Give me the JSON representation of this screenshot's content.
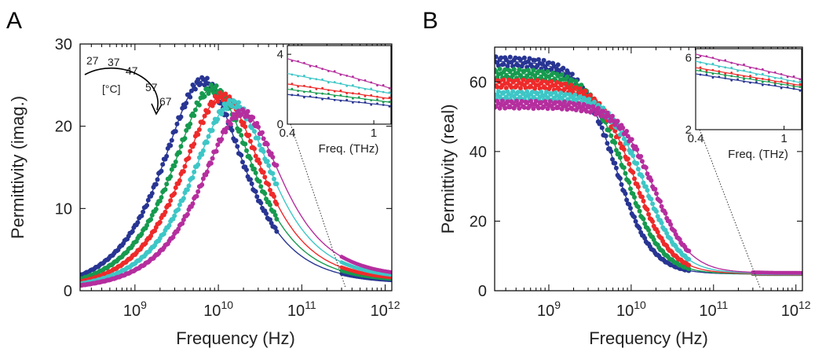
{
  "temperatures": {
    "unit_label": "[°C]",
    "values": [
      "27",
      "37",
      "47",
      "57",
      "67"
    ]
  },
  "colors": {
    "27": "#283593",
    "37": "#169a4f",
    "47": "#ee2a2a",
    "57": "#3ec6c6",
    "67": "#b52e9e"
  },
  "chart_data": [
    {
      "panel_label": "A",
      "type": "scatter",
      "xlabel": "Frequency (Hz)",
      "ylabel": "Permittivity (imag.)",
      "xscale": "log",
      "xlim": [
        220000000.0,
        1200000000000.0
      ],
      "ylim": [
        0,
        30
      ],
      "yticks": [
        0,
        10,
        20,
        30
      ],
      "xticks": [
        {
          "value": 1000000000.0,
          "base": "10",
          "exp": "9"
        },
        {
          "value": 10000000000.0,
          "base": "10",
          "exp": "10"
        },
        {
          "value": 100000000000.0,
          "base": "10",
          "exp": "11"
        },
        {
          "value": 1000000000000.0,
          "base": "10",
          "exp": "12"
        }
      ],
      "grid": false,
      "series": [
        {
          "name": "27",
          "peak_freq_hz": 6500000000.0,
          "peak_value": 24.8,
          "high_freq_plateau": 1.0
        },
        {
          "name": "37",
          "peak_freq_hz": 8500000000.0,
          "peak_value": 23.8,
          "high_freq_plateau": 1.1
        },
        {
          "name": "47",
          "peak_freq_hz": 11000000000.0,
          "peak_value": 22.8,
          "high_freq_plateau": 1.2
        },
        {
          "name": "57",
          "peak_freq_hz": 14500000000.0,
          "peak_value": 21.8,
          "high_freq_plateau": 1.4
        },
        {
          "name": "67",
          "peak_freq_hz": 19000000000.0,
          "peak_value": 20.5,
          "high_freq_plateau": 1.6
        }
      ],
      "inset": {
        "xlabel": "Freq. (THz)",
        "xscale": "log",
        "xlim": [
          0.4,
          1.2
        ],
        "ylim": [
          0,
          4.5
        ],
        "yticks": [
          0,
          4
        ],
        "xticks": [
          0.4,
          1
        ],
        "xtick_labels": [
          "0.4",
          "1"
        ],
        "series": [
          {
            "name": "27",
            "y_at_0.4": 1.7,
            "y_at_1.2": 1.05
          },
          {
            "name": "37",
            "y_at_0.4": 2.0,
            "y_at_1.2": 1.25
          },
          {
            "name": "47",
            "y_at_0.4": 2.3,
            "y_at_1.2": 1.45
          },
          {
            "name": "57",
            "y_at_0.4": 2.9,
            "y_at_1.2": 1.75
          },
          {
            "name": "67",
            "y_at_0.4": 3.75,
            "y_at_1.2": 2.05
          }
        ]
      }
    },
    {
      "panel_label": "B",
      "type": "scatter",
      "xlabel": "Frequency (Hz)",
      "ylabel": "Permittivity (real)",
      "xscale": "log",
      "xlim": [
        220000000.0,
        1200000000000.0
      ],
      "ylim": [
        0,
        70
      ],
      "yticks": [
        0,
        20,
        40,
        60
      ],
      "xticks": [
        {
          "value": 1000000000.0,
          "base": "10",
          "exp": "9"
        },
        {
          "value": 10000000000.0,
          "base": "10",
          "exp": "10"
        },
        {
          "value": 100000000000.0,
          "base": "10",
          "exp": "11"
        },
        {
          "value": 1000000000000.0,
          "base": "10",
          "exp": "12"
        }
      ],
      "grid": false,
      "series": [
        {
          "name": "27",
          "static_value": 66.0,
          "relax_freq_hz": 6500000000.0,
          "high_freq_value": 4.8
        },
        {
          "name": "37",
          "static_value": 62.5,
          "relax_freq_hz": 8500000000.0,
          "high_freq_value": 4.8
        },
        {
          "name": "47",
          "static_value": 59.5,
          "relax_freq_hz": 11000000000.0,
          "high_freq_value": 4.9
        },
        {
          "name": "57",
          "static_value": 56.2,
          "relax_freq_hz": 14500000000.0,
          "high_freq_value": 5.0
        },
        {
          "name": "67",
          "static_value": 53.5,
          "relax_freq_hz": 19000000000.0,
          "high_freq_value": 5.1
        }
      ],
      "inset": {
        "xlabel": "Freq. (THz)",
        "xscale": "log",
        "xlim": [
          0.4,
          1.2
        ],
        "ylim": [
          2,
          6.5
        ],
        "yticks": [
          2,
          6
        ],
        "xticks": [
          0.4,
          1
        ],
        "xtick_labels": [
          "0.4",
          "1"
        ],
        "series": [
          {
            "name": "27",
            "y_at_0.4": 5.1,
            "y_at_1.2": 4.2
          },
          {
            "name": "37",
            "y_at_0.4": 5.3,
            "y_at_1.2": 4.35
          },
          {
            "name": "47",
            "y_at_0.4": 5.45,
            "y_at_1.2": 4.45
          },
          {
            "name": "57",
            "y_at_0.4": 5.8,
            "y_at_1.2": 4.6
          },
          {
            "name": "67",
            "y_at_0.4": 6.2,
            "y_at_1.2": 4.8
          }
        ]
      }
    }
  ]
}
